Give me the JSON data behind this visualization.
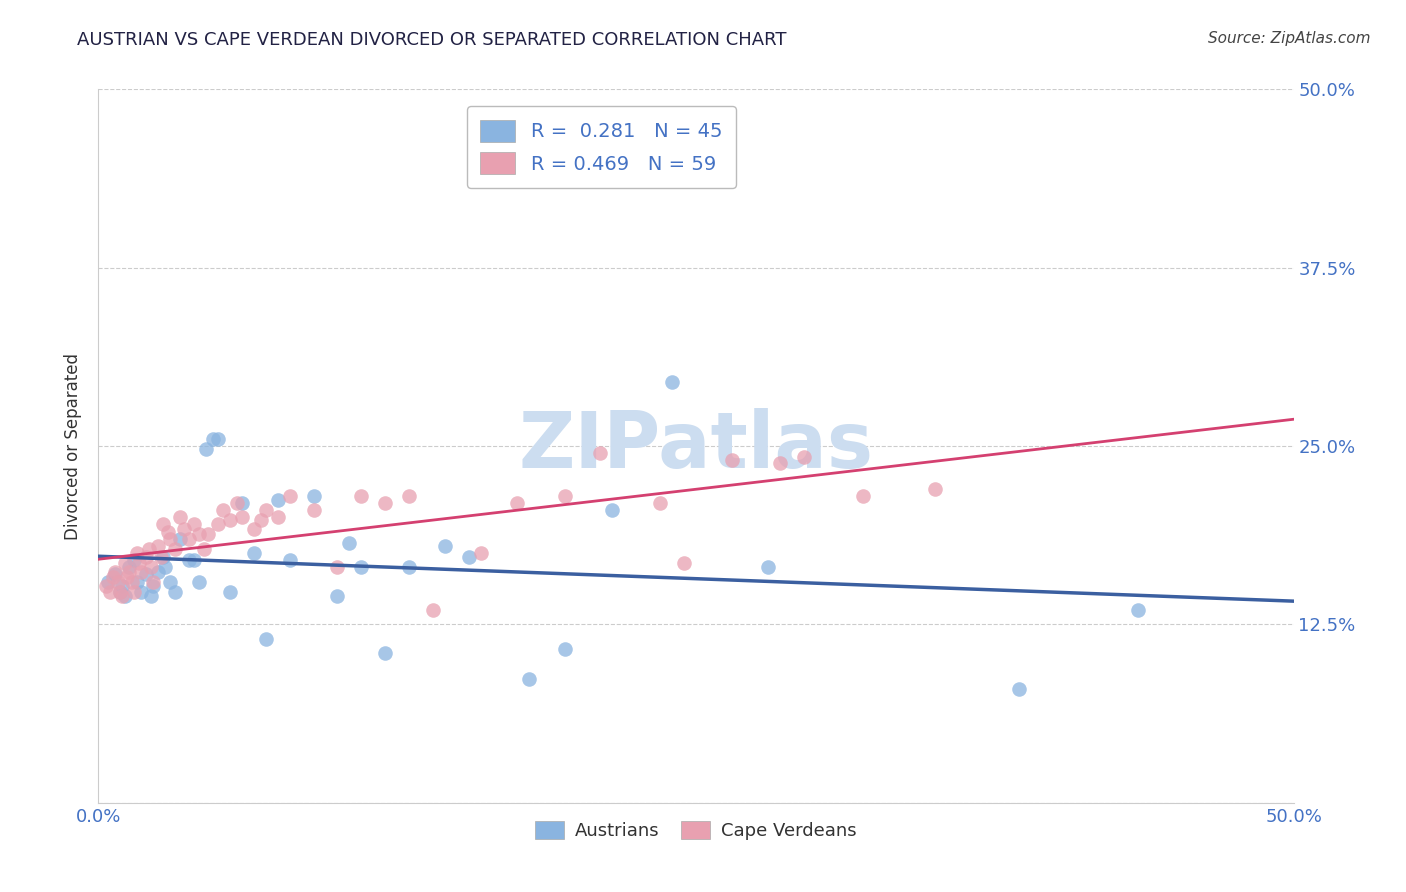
{
  "title": "AUSTRIAN VS CAPE VERDEAN DIVORCED OR SEPARATED CORRELATION CHART",
  "source": "Source: ZipAtlas.com",
  "ylabel": "Divorced or Separated",
  "xlim": [
    0.0,
    0.5
  ],
  "ylim": [
    0.0,
    0.5
  ],
  "yticks": [
    0.0,
    0.125,
    0.25,
    0.375,
    0.5
  ],
  "ytick_labels_right": [
    "",
    "12.5%",
    "25.0%",
    "37.5%",
    "50.0%"
  ],
  "xtick_labels": [
    "0.0%",
    "50.0%"
  ],
  "legend_line1": "R =  0.281   N = 45",
  "legend_line2": "R = 0.469   N = 59",
  "austrian_color": "#8ab4e0",
  "capeverdean_color": "#e8a0b0",
  "line_austrian_color": "#3b5fa0",
  "line_capeverdean_color": "#d44070",
  "watermark_color": "#ccddf0",
  "title_color": "#222244",
  "source_color": "#444444",
  "tick_color": "#4472c4",
  "ylabel_color": "#333333",
  "grid_color": "#cccccc",
  "aus_x": [
    0.004,
    0.007,
    0.009,
    0.01,
    0.011,
    0.013,
    0.015,
    0.016,
    0.018,
    0.02,
    0.022,
    0.023,
    0.025,
    0.027,
    0.028,
    0.03,
    0.032,
    0.034,
    0.038,
    0.04,
    0.042,
    0.045,
    0.048,
    0.05,
    0.055,
    0.06,
    0.065,
    0.07,
    0.075,
    0.08,
    0.09,
    0.1,
    0.105,
    0.11,
    0.12,
    0.13,
    0.145,
    0.155,
    0.18,
    0.195,
    0.215,
    0.24,
    0.28,
    0.385,
    0.435
  ],
  "aus_y": [
    0.155,
    0.16,
    0.148,
    0.152,
    0.145,
    0.165,
    0.17,
    0.155,
    0.148,
    0.16,
    0.145,
    0.152,
    0.162,
    0.172,
    0.165,
    0.155,
    0.148,
    0.185,
    0.17,
    0.17,
    0.155,
    0.248,
    0.255,
    0.255,
    0.148,
    0.21,
    0.175,
    0.115,
    0.212,
    0.17,
    0.215,
    0.145,
    0.182,
    0.165,
    0.105,
    0.165,
    0.18,
    0.172,
    0.087,
    0.108,
    0.205,
    0.295,
    0.165,
    0.08,
    0.135
  ],
  "cv_x": [
    0.003,
    0.005,
    0.006,
    0.007,
    0.008,
    0.009,
    0.01,
    0.011,
    0.012,
    0.013,
    0.014,
    0.015,
    0.016,
    0.017,
    0.018,
    0.02,
    0.021,
    0.022,
    0.023,
    0.025,
    0.026,
    0.027,
    0.029,
    0.03,
    0.032,
    0.034,
    0.036,
    0.038,
    0.04,
    0.042,
    0.044,
    0.046,
    0.05,
    0.052,
    0.055,
    0.058,
    0.06,
    0.065,
    0.068,
    0.07,
    0.075,
    0.08,
    0.09,
    0.1,
    0.11,
    0.12,
    0.13,
    0.14,
    0.16,
    0.175,
    0.195,
    0.21,
    0.235,
    0.245,
    0.265,
    0.285,
    0.295,
    0.32,
    0.35
  ],
  "cv_y": [
    0.152,
    0.148,
    0.158,
    0.162,
    0.155,
    0.148,
    0.145,
    0.168,
    0.158,
    0.162,
    0.155,
    0.148,
    0.175,
    0.168,
    0.162,
    0.172,
    0.178,
    0.165,
    0.155,
    0.18,
    0.172,
    0.195,
    0.19,
    0.185,
    0.178,
    0.2,
    0.192,
    0.185,
    0.195,
    0.188,
    0.178,
    0.188,
    0.195,
    0.205,
    0.198,
    0.21,
    0.2,
    0.192,
    0.198,
    0.205,
    0.2,
    0.215,
    0.205,
    0.165,
    0.215,
    0.21,
    0.215,
    0.135,
    0.175,
    0.21,
    0.215,
    0.245,
    0.21,
    0.168,
    0.24,
    0.238,
    0.242,
    0.215,
    0.22
  ]
}
